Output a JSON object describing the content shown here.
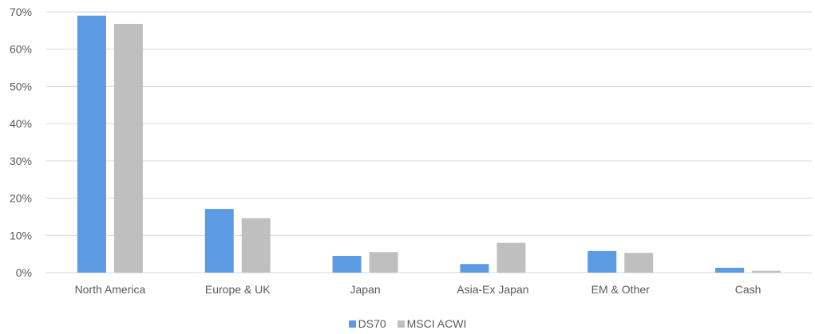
{
  "chart_data": {
    "type": "bar",
    "categories": [
      "North America",
      "Europe & UK",
      "Japan",
      "Asia-Ex Japan",
      "EM & Other",
      "Cash"
    ],
    "series": [
      {
        "name": "DS70",
        "color": "#5B9BE3",
        "values": [
          69,
          17.1,
          4.5,
          2.3,
          5.8,
          1.3
        ]
      },
      {
        "name": "MSCI ACWI",
        "color": "#BFBFBF",
        "values": [
          66.8,
          14.6,
          5.5,
          8.0,
          5.3,
          0.5
        ]
      }
    ],
    "yticks": [
      "0%",
      "10%",
      "20%",
      "30%",
      "40%",
      "50%",
      "60%",
      "70%"
    ],
    "ylim": [
      0,
      70
    ],
    "grid": true,
    "legend_position": "bottom-center",
    "gridline_color": "#D9D9D9"
  }
}
